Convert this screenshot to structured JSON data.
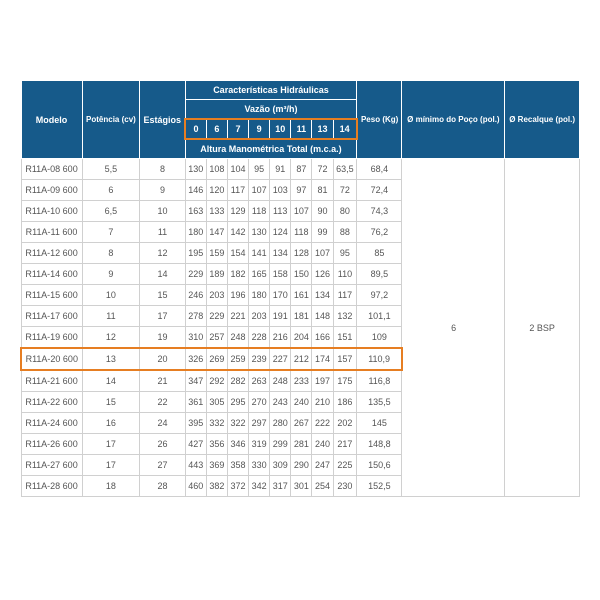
{
  "headers": {
    "modelo": "Modelo",
    "potencia": "Potência (cv)",
    "estagios": "Estágios",
    "caracteristicas": "Características Hidráulicas",
    "vazao": "Vazão (m³/h)",
    "altura": "Altura Manométrica Total (m.c.a.)",
    "peso": "Peso (Kg)",
    "diam_poco": "Ø mínimo do Poço (pol.)",
    "recalque": "Ø Recalque (pol.)",
    "vazao_cols": [
      "0",
      "6",
      "7",
      "9",
      "10",
      "11",
      "13",
      "14"
    ]
  },
  "shared": {
    "poco": "6",
    "recalque": "2 BSP"
  },
  "rows": [
    {
      "m": "R11A-08 600",
      "p": "5,5",
      "e": "8",
      "v": [
        "130",
        "108",
        "104",
        "95",
        "91",
        "87",
        "72",
        "63,5"
      ],
      "peso": "68,4"
    },
    {
      "m": "R11A-09 600",
      "p": "6",
      "e": "9",
      "v": [
        "146",
        "120",
        "117",
        "107",
        "103",
        "97",
        "81",
        "72"
      ],
      "peso": "72,4"
    },
    {
      "m": "R11A-10 600",
      "p": "6,5",
      "e": "10",
      "v": [
        "163",
        "133",
        "129",
        "118",
        "113",
        "107",
        "90",
        "80"
      ],
      "peso": "74,3"
    },
    {
      "m": "R11A-11 600",
      "p": "7",
      "e": "11",
      "v": [
        "180",
        "147",
        "142",
        "130",
        "124",
        "118",
        "99",
        "88"
      ],
      "peso": "76,2"
    },
    {
      "m": "R11A-12 600",
      "p": "8",
      "e": "12",
      "v": [
        "195",
        "159",
        "154",
        "141",
        "134",
        "128",
        "107",
        "95"
      ],
      "peso": "85"
    },
    {
      "m": "R11A-14 600",
      "p": "9",
      "e": "14",
      "v": [
        "229",
        "189",
        "182",
        "165",
        "158",
        "150",
        "126",
        "110"
      ],
      "peso": "89,5"
    },
    {
      "m": "R11A-15 600",
      "p": "10",
      "e": "15",
      "v": [
        "246",
        "203",
        "196",
        "180",
        "170",
        "161",
        "134",
        "117"
      ],
      "peso": "97,2"
    },
    {
      "m": "R11A-17 600",
      "p": "11",
      "e": "17",
      "v": [
        "278",
        "229",
        "221",
        "203",
        "191",
        "181",
        "148",
        "132"
      ],
      "peso": "101,1"
    },
    {
      "m": "R11A-19 600",
      "p": "12",
      "e": "19",
      "v": [
        "310",
        "257",
        "248",
        "228",
        "216",
        "204",
        "166",
        "151"
      ],
      "peso": "109"
    },
    {
      "m": "R11A-20 600",
      "p": "13",
      "e": "20",
      "v": [
        "326",
        "269",
        "259",
        "239",
        "227",
        "212",
        "174",
        "157"
      ],
      "peso": "110,9",
      "hl": true
    },
    {
      "m": "R11A-21 600",
      "p": "14",
      "e": "21",
      "v": [
        "347",
        "292",
        "282",
        "263",
        "248",
        "233",
        "197",
        "175"
      ],
      "peso": "116,8"
    },
    {
      "m": "R11A-22 600",
      "p": "15",
      "e": "22",
      "v": [
        "361",
        "305",
        "295",
        "270",
        "243",
        "240",
        "210",
        "186"
      ],
      "peso": "135,5"
    },
    {
      "m": "R11A-24 600",
      "p": "16",
      "e": "24",
      "v": [
        "395",
        "332",
        "322",
        "297",
        "280",
        "267",
        "222",
        "202"
      ],
      "peso": "145"
    },
    {
      "m": "R11A-26 600",
      "p": "17",
      "e": "26",
      "v": [
        "427",
        "356",
        "346",
        "319",
        "299",
        "281",
        "240",
        "217"
      ],
      "peso": "148,8"
    },
    {
      "m": "R11A-27 600",
      "p": "17",
      "e": "27",
      "v": [
        "443",
        "369",
        "358",
        "330",
        "309",
        "290",
        "247",
        "225"
      ],
      "peso": "150,6"
    },
    {
      "m": "R11A-28 600",
      "p": "18",
      "e": "28",
      "v": [
        "460",
        "382",
        "372",
        "342",
        "317",
        "301",
        "254",
        "230"
      ],
      "peso": "152,5"
    }
  ],
  "style": {
    "header_bg": "#165a8a",
    "header_fg": "#ffffff",
    "cell_fg": "#555555",
    "cell_border": "#d0d0d0",
    "highlight_border": "#e67e22",
    "font_size_header": 9,
    "font_size_cell": 9
  }
}
